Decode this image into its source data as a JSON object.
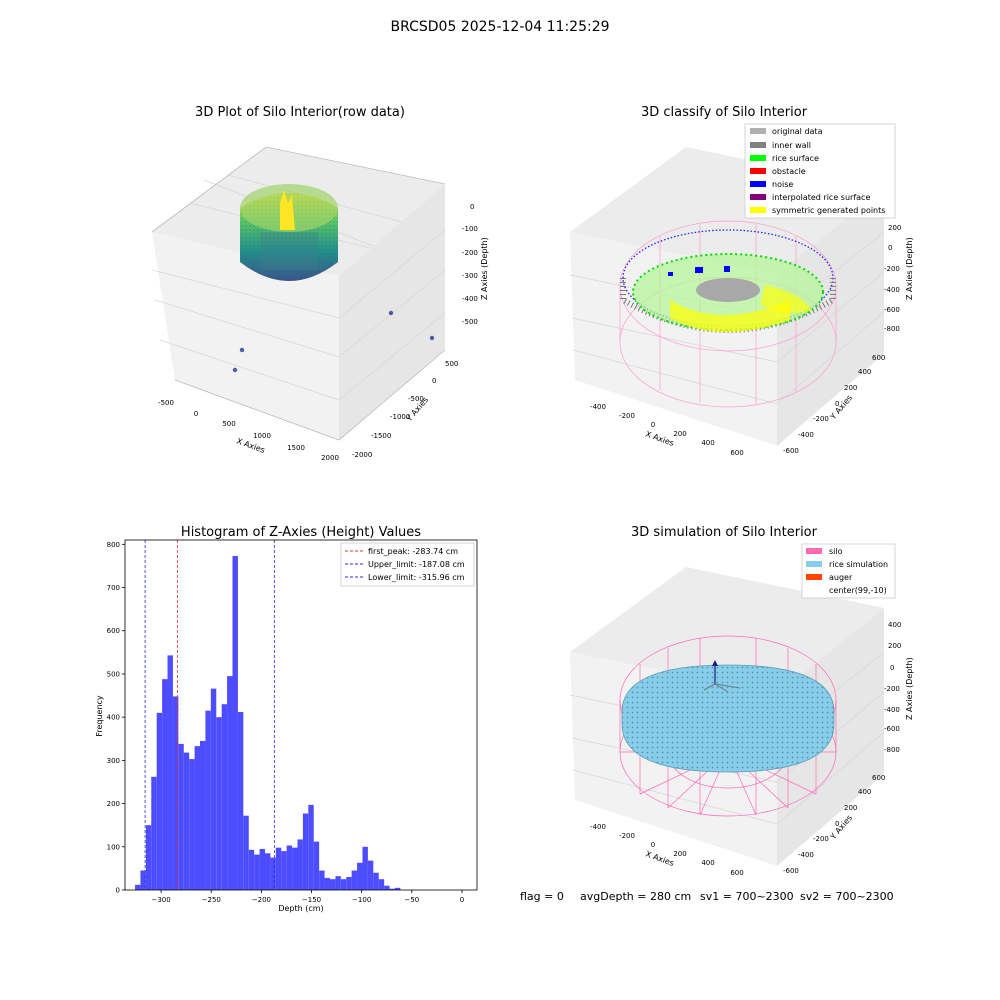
{
  "suptitle": "BRCSD05 2025-12-04 11:25:29",
  "colors": {
    "hist_bar": "#4d4dff",
    "first_peak": "#e03030",
    "limit": "#2a2ae0",
    "silo": "#ff69b4",
    "rice": "#87ceeb",
    "auger": "#ff4500"
  },
  "panels": {
    "raw": {
      "title": "3D Plot of Silo Interior(row data)",
      "xlabel": "X Axies",
      "ylabel": "Y Axies",
      "zlabel": "Z Axies (Depth)",
      "xticks": [
        "-500",
        "0",
        "500",
        "1000",
        "1500",
        "2000"
      ],
      "yticks": [
        "500",
        "0",
        "-500",
        "-1000",
        "-1500",
        "-2000"
      ],
      "zticks": [
        "0",
        "-100",
        "-200",
        "-300",
        "-400",
        "-500"
      ]
    },
    "classify": {
      "title": "3D classify of Silo Interior",
      "xlabel": "X Axies",
      "ylabel": "Y Axies",
      "zlabel": "Z Axies (Depth)",
      "xticks": [
        "-400",
        "-200",
        "0",
        "200",
        "400",
        "600"
      ],
      "yticks": [
        "600",
        "400",
        "200",
        "0",
        "-200",
        "-400",
        "-600"
      ],
      "zticks": [
        "200",
        "0",
        "-200",
        "-400",
        "-600",
        "-800"
      ],
      "legend": [
        {
          "label": "original data",
          "color": "#b0b0b0"
        },
        {
          "label": "inner wall",
          "color": "#808080"
        },
        {
          "label": "rice surface",
          "color": "#00ff00"
        },
        {
          "label": "obstacle",
          "color": "#ff0000"
        },
        {
          "label": "noise",
          "color": "#0000ff"
        },
        {
          "label": "interpolated rice surface",
          "color": "#800080"
        },
        {
          "label": "symmetric generated points",
          "color": "#ffff00"
        }
      ]
    },
    "simulation": {
      "title": "3D simulation of Silo Interior",
      "xlabel": "X Axies",
      "ylabel": "Y Axies",
      "zlabel": "Z Axies (Depth)",
      "xticks": [
        "-400",
        "-200",
        "0",
        "200",
        "400",
        "600"
      ],
      "yticks": [
        "600",
        "400",
        "200",
        "0",
        "-200",
        "-400",
        "-600"
      ],
      "zticks": [
        "400",
        "200",
        "0",
        "-200",
        "-400",
        "-600",
        "-800"
      ],
      "legend": [
        {
          "label": "silo",
          "color": "#ff69b4"
        },
        {
          "label": "rice simulation",
          "color": "#87ceeb"
        },
        {
          "label": "auger",
          "color": "#ff4500"
        },
        {
          "label": "center(99,-10)",
          "color": ""
        }
      ]
    }
  },
  "status_line": {
    "flag": "flag = 0",
    "avg_depth": "avgDepth = 280 cm",
    "sv1": "sv1 = 700~2300",
    "sv2": "sv2 = 700~2300"
  },
  "chart_data": {
    "type": "bar",
    "title": "Histogram of Z-Axies (Height) Values",
    "xlabel": "Depth (cm)",
    "ylabel": "Frequency",
    "xlim": [
      -336,
      15
    ],
    "ylim": [
      0,
      810
    ],
    "xticks": [
      -300,
      -250,
      -200,
      -150,
      -100,
      -50,
      0
    ],
    "yticks": [
      0,
      100,
      200,
      300,
      400,
      500,
      600,
      700,
      800
    ],
    "bin_start": -326,
    "bin_width": 5.4,
    "values": [
      12,
      45,
      150,
      262,
      410,
      488,
      543,
      448,
      338,
      318,
      303,
      333,
      345,
      415,
      466,
      400,
      430,
      495,
      773,
      412,
      172,
      93,
      82,
      95,
      85,
      75,
      98,
      90,
      103,
      98,
      117,
      177,
      197,
      112,
      45,
      28,
      25,
      32,
      25,
      30,
      45,
      63,
      100,
      68,
      40,
      25,
      10,
      3,
      5
    ],
    "lines": [
      {
        "label": "first_peak: -283.74 cm",
        "value": -283.74,
        "color": "#e03030"
      },
      {
        "label": "Upper_limit: -187.08 cm",
        "value": -187.08,
        "color": "#2a2ae0"
      },
      {
        "label": "Lower_limit: -315.96 cm",
        "value": -315.96,
        "color": "#2a2ae0"
      }
    ]
  }
}
